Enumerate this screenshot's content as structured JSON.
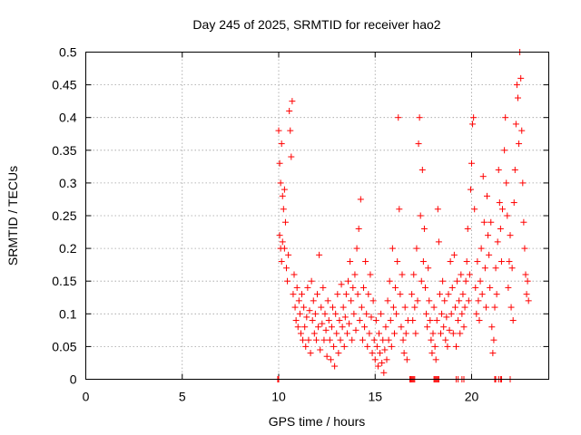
{
  "chart_data": {
    "type": "scatter",
    "title": "Day 245 of 2025, SRMTID for receiver hao2",
    "xlabel": "GPS time / hours",
    "ylabel": "SRMTID / TECUs",
    "xlim": [
      0,
      24
    ],
    "ylim": [
      0,
      0.5
    ],
    "x_ticks": [
      0,
      5,
      10,
      15,
      20
    ],
    "x_tick_labels": [
      "0",
      "5",
      "10",
      "15",
      "20"
    ],
    "y_ticks": [
      0,
      0.05,
      0.1,
      0.15,
      0.2,
      0.25,
      0.3,
      0.35,
      0.4,
      0.45,
      0.5
    ],
    "y_tick_labels": [
      "0",
      "0.05",
      "0.1",
      "0.15",
      "0.2",
      "0.25",
      "0.3",
      "0.35",
      "0.4",
      "0.45",
      "0.5"
    ],
    "grid": true,
    "marker": "plus",
    "color": "#ff0000",
    "series": [
      {
        "name": "SRMTID",
        "points": [
          [
            9.95,
            0.0
          ],
          [
            10.0,
            0.0
          ],
          [
            10.0,
            0.38
          ],
          [
            10.05,
            0.33
          ],
          [
            10.1,
            0.3
          ],
          [
            10.15,
            0.36
          ],
          [
            10.2,
            0.28
          ],
          [
            10.25,
            0.26
          ],
          [
            10.3,
            0.29
          ],
          [
            10.35,
            0.24
          ],
          [
            10.05,
            0.22
          ],
          [
            10.1,
            0.2
          ],
          [
            10.15,
            0.18
          ],
          [
            10.2,
            0.21
          ],
          [
            10.3,
            0.2
          ],
          [
            10.4,
            0.17
          ],
          [
            10.45,
            0.15
          ],
          [
            10.5,
            0.19
          ],
          [
            10.55,
            0.41
          ],
          [
            10.6,
            0.38
          ],
          [
            10.65,
            0.34
          ],
          [
            10.7,
            0.425
          ],
          [
            10.75,
            0.13
          ],
          [
            10.8,
            0.16
          ],
          [
            10.85,
            0.11
          ],
          [
            10.9,
            0.09
          ],
          [
            10.95,
            0.14
          ],
          [
            11.0,
            0.08
          ],
          [
            11.05,
            0.12
          ],
          [
            11.1,
            0.1
          ],
          [
            11.15,
            0.07
          ],
          [
            11.2,
            0.13
          ],
          [
            11.25,
            0.06
          ],
          [
            11.3,
            0.11
          ],
          [
            11.35,
            0.08
          ],
          [
            11.4,
            0.05
          ],
          [
            11.45,
            0.095
          ],
          [
            11.5,
            0.14
          ],
          [
            11.55,
            0.06
          ],
          [
            11.6,
            0.105
          ],
          [
            11.65,
            0.04
          ],
          [
            11.7,
            0.15
          ],
          [
            11.75,
            0.09
          ],
          [
            11.8,
            0.12
          ],
          [
            11.85,
            0.07
          ],
          [
            11.9,
            0.1
          ],
          [
            11.95,
            0.06
          ],
          [
            12.0,
            0.13
          ],
          [
            12.05,
            0.08
          ],
          [
            12.1,
            0.19
          ],
          [
            12.15,
            0.045
          ],
          [
            12.2,
            0.11
          ],
          [
            12.25,
            0.085
          ],
          [
            12.3,
            0.14
          ],
          [
            12.35,
            0.06
          ],
          [
            12.4,
            0.1
          ],
          [
            12.45,
            0.075
          ],
          [
            12.5,
            0.035
          ],
          [
            12.55,
            0.12
          ],
          [
            12.6,
            0.09
          ],
          [
            12.65,
            0.06
          ],
          [
            12.7,
            0.03
          ],
          [
            12.75,
            0.08
          ],
          [
            12.8,
            0.11
          ],
          [
            12.85,
            0.05
          ],
          [
            12.9,
            0.02
          ],
          [
            12.95,
            0.1
          ],
          [
            13.0,
            0.07
          ],
          [
            13.05,
            0.13
          ],
          [
            13.1,
            0.04
          ],
          [
            13.15,
            0.09
          ],
          [
            13.2,
            0.06
          ],
          [
            13.25,
            0.145
          ],
          [
            13.3,
            0.08
          ],
          [
            13.35,
            0.11
          ],
          [
            13.4,
            0.05
          ],
          [
            13.45,
            0.095
          ],
          [
            13.5,
            0.13
          ],
          [
            13.55,
            0.07
          ],
          [
            13.6,
            0.15
          ],
          [
            13.65,
            0.085
          ],
          [
            13.7,
            0.18
          ],
          [
            13.75,
            0.12
          ],
          [
            13.8,
            0.06
          ],
          [
            13.85,
            0.14
          ],
          [
            13.9,
            0.1
          ],
          [
            13.95,
            0.16
          ],
          [
            14.0,
            0.075
          ],
          [
            14.05,
            0.2
          ],
          [
            14.1,
            0.13
          ],
          [
            14.15,
            0.23
          ],
          [
            14.2,
            0.09
          ],
          [
            14.25,
            0.275
          ],
          [
            14.3,
            0.11
          ],
          [
            14.35,
            0.06
          ],
          [
            14.4,
            0.14
          ],
          [
            14.45,
            0.08
          ],
          [
            14.5,
            0.18
          ],
          [
            14.55,
            0.1
          ],
          [
            14.6,
            0.05
          ],
          [
            14.65,
            0.13
          ],
          [
            14.7,
            0.07
          ],
          [
            14.75,
            0.16
          ],
          [
            14.8,
            0.095
          ],
          [
            14.85,
            0.04
          ],
          [
            14.9,
            0.12
          ],
          [
            14.95,
            0.06
          ],
          [
            15.0,
            0.03
          ],
          [
            15.05,
            0.09
          ],
          [
            15.1,
            0.05
          ],
          [
            15.15,
            0.02
          ],
          [
            15.2,
            0.07
          ],
          [
            15.25,
            0.04
          ],
          [
            15.3,
            0.1
          ],
          [
            15.35,
            0.025
          ],
          [
            15.4,
            0.06
          ],
          [
            15.45,
            0.01
          ],
          [
            15.5,
            0.045
          ],
          [
            15.55,
            0.08
          ],
          [
            15.6,
            0.03
          ],
          [
            15.65,
            0.12
          ],
          [
            15.7,
            0.06
          ],
          [
            15.75,
            0.15
          ],
          [
            15.8,
            0.09
          ],
          [
            15.85,
            0.05
          ],
          [
            15.9,
            0.2
          ],
          [
            15.95,
            0.11
          ],
          [
            16.0,
            0.07
          ],
          [
            16.05,
            0.14
          ],
          [
            16.1,
            0.1
          ],
          [
            16.15,
            0.18
          ],
          [
            16.2,
            0.4
          ],
          [
            16.25,
            0.26
          ],
          [
            16.3,
            0.13
          ],
          [
            16.35,
            0.08
          ],
          [
            16.4,
            0.16
          ],
          [
            16.45,
            0.06
          ],
          [
            16.5,
            0.04
          ],
          [
            16.55,
            0.11
          ],
          [
            16.6,
            0.07
          ],
          [
            16.65,
            0.03
          ],
          [
            16.7,
            0.09
          ],
          [
            16.8,
            0.0
          ],
          [
            16.85,
            0.0
          ],
          [
            16.9,
            0.0
          ],
          [
            16.95,
            0.0
          ],
          [
            17.0,
            0.0
          ],
          [
            17.05,
            0.0
          ],
          [
            16.9,
            0.13
          ],
          [
            16.95,
            0.09
          ],
          [
            17.0,
            0.16
          ],
          [
            17.05,
            0.11
          ],
          [
            17.1,
            0.07
          ],
          [
            17.15,
            0.2
          ],
          [
            17.2,
            0.12
          ],
          [
            17.25,
            0.36
          ],
          [
            17.3,
            0.4
          ],
          [
            17.35,
            0.25
          ],
          [
            17.4,
            0.15
          ],
          [
            17.45,
            0.32
          ],
          [
            17.5,
            0.18
          ],
          [
            17.55,
            0.23
          ],
          [
            17.6,
            0.14
          ],
          [
            17.65,
            0.1
          ],
          [
            17.7,
            0.08
          ],
          [
            17.75,
            0.17
          ],
          [
            17.8,
            0.12
          ],
          [
            17.85,
            0.09
          ],
          [
            17.9,
            0.06
          ],
          [
            17.95,
            0.04
          ],
          [
            18.0,
            0.07
          ],
          [
            18.05,
            0.11
          ],
          [
            18.1,
            0.05
          ],
          [
            18.15,
            0.03
          ],
          [
            18.05,
            0.0
          ],
          [
            18.1,
            0.0
          ],
          [
            18.15,
            0.0
          ],
          [
            18.2,
            0.0
          ],
          [
            18.25,
            0.0
          ],
          [
            18.3,
            0.0
          ],
          [
            18.2,
            0.09
          ],
          [
            18.25,
            0.26
          ],
          [
            18.3,
            0.21
          ],
          [
            18.35,
            0.13
          ],
          [
            18.4,
            0.07
          ],
          [
            18.45,
            0.1
          ],
          [
            18.5,
            0.15
          ],
          [
            18.55,
            0.08
          ],
          [
            18.6,
            0.12
          ],
          [
            18.65,
            0.06
          ],
          [
            18.7,
            0.095
          ],
          [
            18.75,
            0.05
          ],
          [
            18.8,
            0.13
          ],
          [
            18.85,
            0.075
          ],
          [
            18.9,
            0.18
          ],
          [
            18.95,
            0.1
          ],
          [
            19.0,
            0.14
          ],
          [
            19.05,
            0.07
          ],
          [
            19.1,
            0.19
          ],
          [
            19.15,
            0.11
          ],
          [
            19.2,
            0.05
          ],
          [
            19.25,
            0.15
          ],
          [
            19.3,
            0.09
          ],
          [
            19.35,
            0.12
          ],
          [
            19.4,
            0.07
          ],
          [
            19.45,
            0.16
          ],
          [
            19.2,
            0.0
          ],
          [
            19.3,
            0.0
          ],
          [
            19.5,
            0.0
          ],
          [
            19.6,
            0.0
          ],
          [
            19.5,
            0.1
          ],
          [
            19.55,
            0.13
          ],
          [
            19.6,
            0.08
          ],
          [
            19.65,
            0.11
          ],
          [
            19.7,
            0.15
          ],
          [
            19.75,
            0.18
          ],
          [
            19.8,
            0.23
          ],
          [
            19.85,
            0.12
          ],
          [
            19.9,
            0.16
          ],
          [
            19.95,
            0.29
          ],
          [
            20.0,
            0.33
          ],
          [
            20.05,
            0.39
          ],
          [
            20.1,
            0.4
          ],
          [
            20.15,
            0.26
          ],
          [
            20.2,
            0.14
          ],
          [
            20.25,
            0.1
          ],
          [
            20.3,
            0.18
          ],
          [
            20.35,
            0.12
          ],
          [
            20.4,
            0.09
          ],
          [
            20.45,
            0.15
          ],
          [
            20.5,
            0.2
          ],
          [
            20.55,
            0.13
          ],
          [
            20.6,
            0.31
          ],
          [
            20.65,
            0.24
          ],
          [
            20.7,
            0.17
          ],
          [
            20.75,
            0.11
          ],
          [
            20.8,
            0.28
          ],
          [
            20.85,
            0.22
          ],
          [
            20.9,
            0.19
          ],
          [
            20.95,
            0.14
          ],
          [
            21.0,
            0.24
          ],
          [
            21.05,
            0.08
          ],
          [
            21.1,
            0.04
          ],
          [
            21.15,
            0.06
          ],
          [
            21.2,
            0.11
          ],
          [
            21.25,
            0.17
          ],
          [
            21.3,
            0.13
          ],
          [
            21.35,
            0.21
          ],
          [
            21.4,
            0.32
          ],
          [
            21.45,
            0.27
          ],
          [
            21.5,
            0.23
          ],
          [
            21.55,
            0.18
          ],
          [
            21.6,
            0.26
          ],
          [
            21.2,
            0.0
          ],
          [
            21.25,
            0.0
          ],
          [
            21.4,
            0.0
          ],
          [
            21.5,
            0.0
          ],
          [
            21.55,
            0.0
          ],
          [
            22.0,
            0.0
          ],
          [
            21.7,
            0.35
          ],
          [
            21.75,
            0.4
          ],
          [
            21.8,
            0.3
          ],
          [
            21.85,
            0.25
          ],
          [
            21.9,
            0.14
          ],
          [
            21.95,
            0.18
          ],
          [
            22.0,
            0.22
          ],
          [
            22.05,
            0.11
          ],
          [
            22.1,
            0.17
          ],
          [
            22.15,
            0.09
          ],
          [
            22.2,
            0.27
          ],
          [
            22.25,
            0.32
          ],
          [
            22.3,
            0.39
          ],
          [
            22.35,
            0.45
          ],
          [
            22.4,
            0.43
          ],
          [
            22.45,
            0.36
          ],
          [
            22.5,
            0.5
          ],
          [
            22.55,
            0.46
          ],
          [
            22.6,
            0.38
          ],
          [
            22.65,
            0.3
          ],
          [
            22.7,
            0.24
          ],
          [
            22.75,
            0.2
          ],
          [
            22.8,
            0.16
          ],
          [
            22.85,
            0.13
          ],
          [
            22.9,
            0.15
          ],
          [
            22.95,
            0.12
          ]
        ]
      }
    ]
  }
}
